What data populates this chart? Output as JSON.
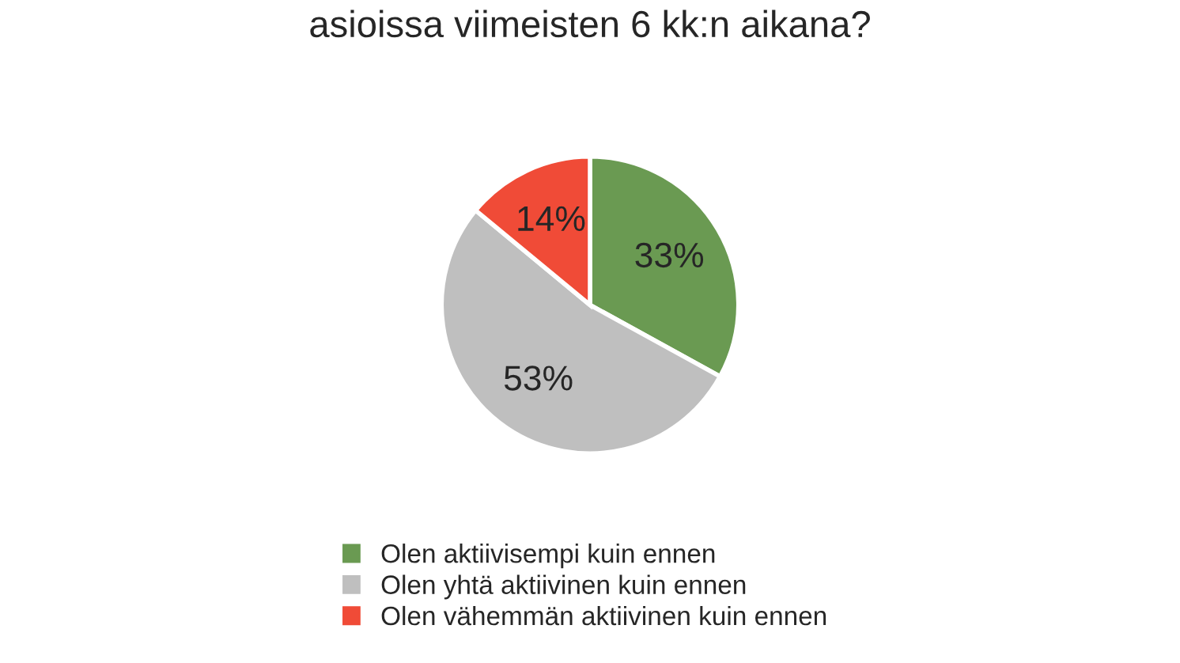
{
  "chart_data": {
    "type": "pie",
    "title": "asioissa viimeisten 6 kk:n aikana?",
    "categories": [
      "Olen aktiivisempi kuin ennen",
      "Olen yhtä aktiivinen kuin ennen",
      "Olen vähemmän aktiivinen kuin ennen"
    ],
    "values": [
      33,
      53,
      14
    ],
    "colors": [
      "#6a9a52",
      "#bfbfbf",
      "#f04b37"
    ],
    "value_labels": [
      "33%",
      "53%",
      "14%"
    ],
    "legend": "bottom"
  }
}
